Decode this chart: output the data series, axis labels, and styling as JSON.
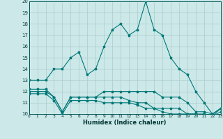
{
  "xlabel": "Humidex (Indice chaleur)",
  "bg_color": "#cce8e8",
  "grid_color": "#aacccc",
  "line_color": "#007878",
  "x": [
    0,
    1,
    2,
    3,
    4,
    5,
    6,
    7,
    8,
    9,
    10,
    11,
    12,
    13,
    14,
    15,
    16,
    17,
    18,
    19,
    20,
    21,
    22,
    23
  ],
  "series1": [
    13,
    13,
    13,
    14,
    14,
    15,
    15.5,
    13.5,
    14,
    16,
    17.5,
    18,
    17,
    17.5,
    20,
    17.5,
    17,
    15,
    14,
    13.5,
    12,
    11,
    10,
    10.5
  ],
  "series2": [
    12.2,
    12.2,
    12.2,
    11.5,
    10.2,
    11.5,
    11.5,
    11.5,
    11.5,
    12,
    12,
    12,
    12,
    12,
    12,
    12,
    11.5,
    11.5,
    11.5,
    11,
    10.2,
    10.2,
    10,
    10.5
  ],
  "series3": [
    12,
    12,
    12,
    11.5,
    10.2,
    11.5,
    11.5,
    11.5,
    11.5,
    11.5,
    11.5,
    11.5,
    11.2,
    11,
    11,
    10.5,
    10.5,
    10.5,
    10.5,
    10,
    10,
    10,
    9.8,
    10.5
  ],
  "series4": [
    11.8,
    11.8,
    11.8,
    11.2,
    10,
    11.2,
    11.2,
    11.2,
    11.2,
    11,
    11,
    11,
    11,
    10.8,
    10.5,
    10.5,
    10.2,
    10,
    10,
    10,
    10,
    9.8,
    9.8,
    10.2
  ],
  "ylim": [
    10,
    20
  ],
  "xlim": [
    0,
    23
  ],
  "yticks": [
    10,
    11,
    12,
    13,
    14,
    15,
    16,
    17,
    18,
    19,
    20
  ],
  "xticks": [
    0,
    1,
    2,
    3,
    4,
    5,
    6,
    7,
    8,
    9,
    10,
    11,
    12,
    13,
    14,
    15,
    16,
    17,
    18,
    19,
    20,
    21,
    22,
    23
  ]
}
